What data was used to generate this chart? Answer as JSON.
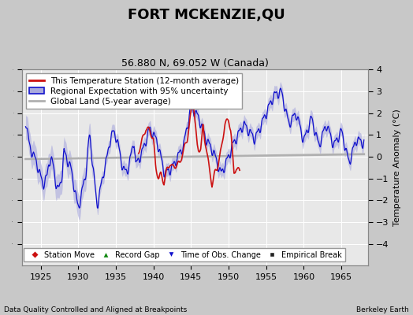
{
  "title": "FORT MCKENZIE,QU",
  "subtitle": "56.880 N, 69.052 W (Canada)",
  "ylabel": "Temperature Anomaly (°C)",
  "xlabel_left": "Data Quality Controlled and Aligned at Breakpoints",
  "xlabel_right": "Berkeley Earth",
  "xlim": [
    1922.5,
    1968.5
  ],
  "ylim": [
    -5,
    4
  ],
  "yticks": [
    -4,
    -3,
    -2,
    -1,
    0,
    1,
    2,
    3,
    4
  ],
  "xticks": [
    1925,
    1930,
    1935,
    1940,
    1945,
    1950,
    1955,
    1960,
    1965
  ],
  "background_color": "#c8c8c8",
  "plot_background": "#e8e8e8",
  "grid_color": "#ffffff",
  "blue_line_color": "#1111cc",
  "blue_fill_color": "#aaaadd",
  "red_line_color": "#cc1111",
  "gray_line_color": "#b0b0b0",
  "title_fontsize": 13,
  "subtitle_fontsize": 9,
  "tick_fontsize": 8,
  "legend_fontsize": 7.5
}
